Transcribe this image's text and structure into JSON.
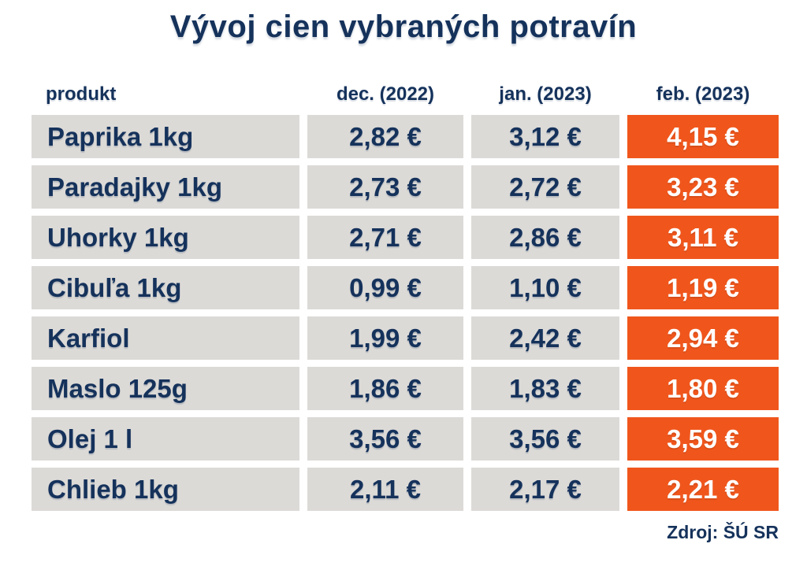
{
  "title": "Vývoj cien vybraných potravín",
  "source": "Zdroj: ŠÚ SR",
  "colors": {
    "navy": "#15325B",
    "orange": "#F0561C",
    "cell_gray": "#DCDAD7",
    "background": "#FFFFFF",
    "highlight_text": "#FFFFFF"
  },
  "table": {
    "columns": [
      "produkt",
      "dec. (2022)",
      "jan. (2023)",
      "feb. (2023)"
    ],
    "rows": [
      {
        "product": "Paprika 1kg",
        "dec": "2,82 €",
        "jan": "3,12 €",
        "feb": "4,15 €"
      },
      {
        "product": "Paradajky 1kg",
        "dec": "2,73 €",
        "jan": "2,72 €",
        "feb": "3,23 €"
      },
      {
        "product": "Uhorky 1kg",
        "dec": "2,71 €",
        "jan": "2,86 €",
        "feb": "3,11 €"
      },
      {
        "product": "Cibuľa 1kg",
        "dec": "0,99 €",
        "jan": "1,10 €",
        "feb": "1,19 €"
      },
      {
        "product": "Karfiol",
        "dec": "1,99 €",
        "jan": "2,42 €",
        "feb": "2,94 €"
      },
      {
        "product": "Maslo 125g",
        "dec": "1,86 €",
        "jan": "1,83 €",
        "feb": "1,80 €"
      },
      {
        "product": "Olej 1 l",
        "dec": "3,56 €",
        "jan": "3,56 €",
        "feb": "3,59 €"
      },
      {
        "product": "Chlieb 1kg",
        "dec": "2,11 €",
        "jan": "2,17 €",
        "feb": "2,21 €"
      }
    ]
  },
  "chart_data": {
    "type": "table",
    "title": "Vývoj cien vybraných potravín",
    "columns": [
      "produkt",
      "dec. (2022)",
      "jan. (2023)",
      "feb. (2023)"
    ],
    "unit": "EUR",
    "rows": [
      [
        "Paprika 1kg",
        2.82,
        3.12,
        4.15
      ],
      [
        "Paradajky 1kg",
        2.73,
        2.72,
        3.23
      ],
      [
        "Uhorky 1kg",
        2.71,
        2.86,
        3.11
      ],
      [
        "Cibuľa 1kg",
        0.99,
        1.1,
        1.19
      ],
      [
        "Karfiol",
        1.99,
        2.42,
        2.94
      ],
      [
        "Maslo 125g",
        1.86,
        1.83,
        1.8
      ],
      [
        "Olej 1 l",
        3.56,
        3.56,
        3.59
      ],
      [
        "Chlieb 1kg",
        2.11,
        2.17,
        2.21
      ]
    ],
    "highlighted_column": "feb. (2023)",
    "source": "Zdroj: ŠÚ SR",
    "layout": "header row on top, 8 data rows, last column highlighted orange, others light gray"
  }
}
